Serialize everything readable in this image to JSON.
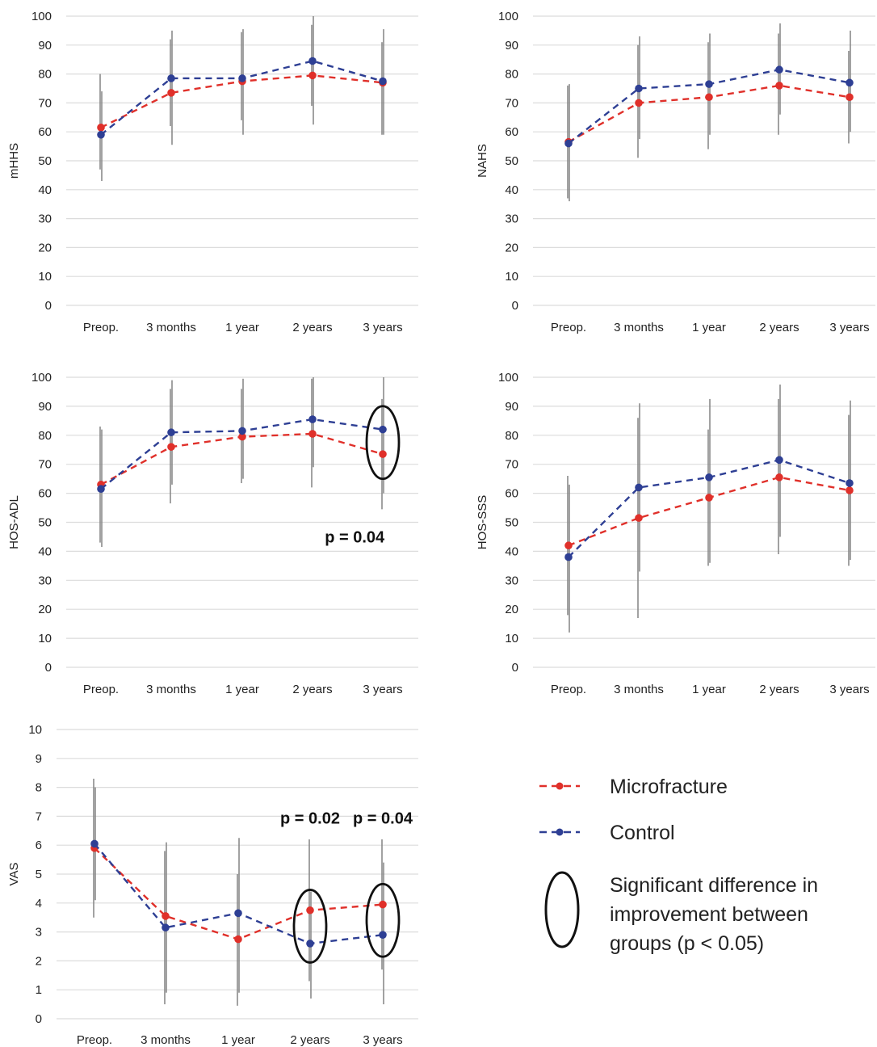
{
  "colors": {
    "microfracture": "#e0302a",
    "control": "#2e3f94",
    "grid": "#dcdcdc",
    "error_bar": "#8a8a8a",
    "annotation": "#111111"
  },
  "chart_data": [
    {
      "type": "line",
      "ylabel": "mHHS",
      "categories": [
        "Preop.",
        "3 months",
        "1 year",
        "2 years",
        "3 years"
      ],
      "ylim": [
        0,
        100
      ],
      "yticks": [
        0,
        10,
        20,
        30,
        40,
        50,
        60,
        70,
        80,
        90,
        100
      ],
      "series": [
        {
          "key": "microfracture",
          "values": [
            61.5,
            73.5,
            77.5,
            79.5,
            77
          ],
          "error": [
            [
              47,
              80
            ],
            [
              62,
              92
            ],
            [
              64,
              94.5
            ],
            [
              69,
              97
            ],
            [
              59,
              91
            ]
          ]
        },
        {
          "key": "control",
          "values": [
            59,
            78.5,
            78.5,
            84.5,
            77.5
          ],
          "error": [
            [
              43,
              74
            ],
            [
              55.5,
              95
            ],
            [
              59,
              95.5
            ],
            [
              62.5,
              100
            ],
            [
              59,
              95.5
            ]
          ]
        }
      ],
      "annotations": []
    },
    {
      "type": "line",
      "ylabel": "NAHS",
      "categories": [
        "Preop.",
        "3 months",
        "1 year",
        "2 years",
        "3 years"
      ],
      "ylim": [
        0,
        100
      ],
      "yticks": [
        0,
        10,
        20,
        30,
        40,
        50,
        60,
        70,
        80,
        90,
        100
      ],
      "series": [
        {
          "key": "microfracture",
          "values": [
            56.5,
            70,
            72,
            76,
            72
          ],
          "error": [
            [
              37,
              76
            ],
            [
              51,
              90
            ],
            [
              54,
              91
            ],
            [
              59,
              94
            ],
            [
              56,
              88
            ]
          ]
        },
        {
          "key": "control",
          "values": [
            56,
            75,
            76.5,
            81.5,
            77
          ],
          "error": [
            [
              36,
              76.5
            ],
            [
              57.5,
              93
            ],
            [
              59,
              94
            ],
            [
              66,
              97.5
            ],
            [
              60,
              95
            ]
          ]
        }
      ],
      "annotations": []
    },
    {
      "type": "line",
      "ylabel": "HOS-ADL",
      "categories": [
        "Preop.",
        "3 months",
        "1 year",
        "2 years",
        "3 years"
      ],
      "ylim": [
        0,
        100
      ],
      "yticks": [
        0,
        10,
        20,
        30,
        40,
        50,
        60,
        70,
        80,
        90,
        100
      ],
      "series": [
        {
          "key": "microfracture",
          "values": [
            63,
            76,
            79.5,
            80.5,
            73.5
          ],
          "error": [
            [
              43,
              83
            ],
            [
              56.5,
              96
            ],
            [
              63.5,
              96
            ],
            [
              62,
              99.5
            ],
            [
              54.5,
              92.5
            ]
          ]
        },
        {
          "key": "control",
          "values": [
            61.5,
            81,
            81.5,
            85.5,
            82
          ],
          "error": [
            [
              41.5,
              82
            ],
            [
              63,
              99
            ],
            [
              65,
              99.5
            ],
            [
              69,
              100
            ],
            [
              60,
              100
            ]
          ]
        }
      ],
      "annotations": [
        {
          "kind": "ellipse",
          "category": 4,
          "y": 77.5
        },
        {
          "kind": "text",
          "text": "p = 0.04",
          "category": 3.6,
          "y": 43
        }
      ]
    },
    {
      "type": "line",
      "ylabel": "HOS-SSS",
      "categories": [
        "Preop.",
        "3 months",
        "1 year",
        "2 years",
        "3 years"
      ],
      "ylim": [
        0,
        100
      ],
      "yticks": [
        0,
        10,
        20,
        30,
        40,
        50,
        60,
        70,
        80,
        90,
        100
      ],
      "series": [
        {
          "key": "microfracture",
          "values": [
            42,
            51.5,
            58.5,
            65.5,
            61
          ],
          "error": [
            [
              18,
              66
            ],
            [
              17,
              86
            ],
            [
              35,
              82
            ],
            [
              39,
              92.5
            ],
            [
              35,
              87
            ]
          ]
        },
        {
          "key": "control",
          "values": [
            38,
            62,
            65.5,
            71.5,
            63.5
          ],
          "error": [
            [
              12,
              63
            ],
            [
              33,
              91
            ],
            [
              36,
              92.5
            ],
            [
              45,
              97.5
            ],
            [
              37,
              92
            ]
          ]
        }
      ],
      "annotations": []
    },
    {
      "type": "line",
      "ylabel": "VAS",
      "categories": [
        "Preop.",
        "3 months",
        "1 year",
        "2 years",
        "3 years"
      ],
      "ylim": [
        0,
        10
      ],
      "yticks": [
        0,
        1,
        2,
        3,
        4,
        5,
        6,
        7,
        8,
        9,
        10
      ],
      "series": [
        {
          "key": "microfracture",
          "values": [
            5.9,
            3.55,
            2.75,
            3.75,
            3.95
          ],
          "error": [
            [
              3.5,
              8.3
            ],
            [
              0.5,
              5.8
            ],
            [
              0.45,
              5.0
            ],
            [
              1.3,
              6.2
            ],
            [
              1.7,
              6.2
            ]
          ]
        },
        {
          "key": "control",
          "values": [
            6.05,
            3.15,
            3.65,
            2.6,
            2.9
          ],
          "error": [
            [
              4.1,
              8.0
            ],
            [
              0.9,
              6.1
            ],
            [
              0.9,
              6.25
            ],
            [
              0.7,
              4.4
            ],
            [
              0.5,
              5.4
            ]
          ]
        }
      ],
      "annotations": [
        {
          "kind": "ellipse",
          "category": 3,
          "y": 3.2
        },
        {
          "kind": "ellipse",
          "category": 4,
          "y": 3.4
        },
        {
          "kind": "text",
          "text": "p = 0.02",
          "category": 3,
          "y": 6.75
        },
        {
          "kind": "text",
          "text": "p = 0.04",
          "category": 4,
          "y": 6.75
        }
      ]
    }
  ],
  "legend": {
    "microfracture_label": "Microfracture",
    "control_label": "Control",
    "significance_line1": "Significant difference in",
    "significance_line2": "improvement between",
    "significance_line3": "groups (p < 0.05)"
  }
}
